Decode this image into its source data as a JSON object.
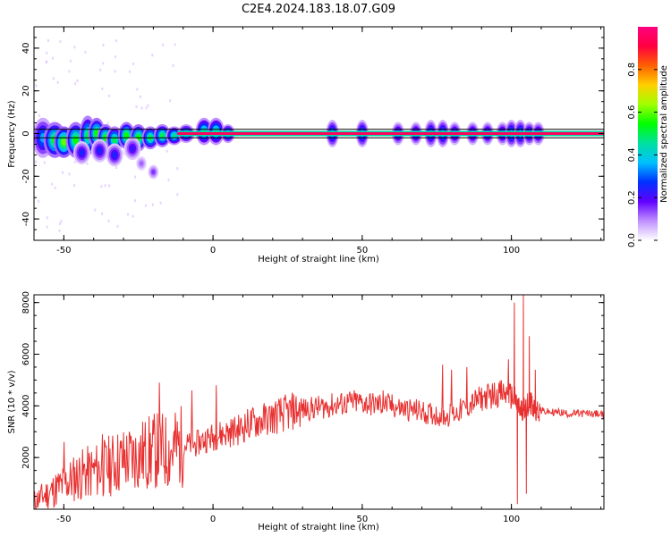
{
  "title": "C2E4.2024.183.18.07.G09",
  "chart_data": [
    {
      "type": "heatmap",
      "xlabel": "Height of straight line (km)",
      "ylabel": "Frequency (Hz)",
      "xlim": [
        -60,
        131
      ],
      "ylim": [
        -50,
        50
      ],
      "xticks": [
        -50,
        0,
        50,
        100
      ],
      "yticks": [
        -40,
        -20,
        0,
        20,
        40
      ],
      "colorbar": {
        "label": "Normalized spectral amplitude",
        "range": [
          0.0,
          1.0
        ],
        "ticks": [
          0.0,
          0.2,
          0.4,
          0.6,
          0.8
        ],
        "colors": [
          "#ffffff",
          "#c090ff",
          "#6000ff",
          "#0030ff",
          "#00c0ff",
          "#00e0a0",
          "#00ff00",
          "#a0ff00",
          "#ffd000",
          "#ff6000",
          "#ff0040",
          "#ff0080"
        ]
      },
      "reference_lines_hz": [
        -2,
        2
      ],
      "blobs": [
        {
          "x": -57,
          "f": -2,
          "w": 3.2,
          "h": 9,
          "a": 0.35
        },
        {
          "x": -53,
          "f": -3,
          "w": 3.5,
          "h": 8,
          "a": 0.55
        },
        {
          "x": -50,
          "f": -4,
          "w": 3,
          "h": 7,
          "a": 0.6
        },
        {
          "x": -46,
          "f": -3,
          "w": 3,
          "h": 8,
          "a": 0.55
        },
        {
          "x": -42,
          "f": -1,
          "w": 2.5,
          "h": 9,
          "a": 0.5
        },
        {
          "x": -39,
          "f": 0,
          "w": 2.5,
          "h": 7,
          "a": 0.55
        },
        {
          "x": -36,
          "f": -2,
          "w": 2.5,
          "h": 6,
          "a": 0.55
        },
        {
          "x": -33,
          "f": -3,
          "w": 2.5,
          "h": 6,
          "a": 0.5
        },
        {
          "x": -29,
          "f": -1,
          "w": 2.5,
          "h": 6,
          "a": 0.55
        },
        {
          "x": -25,
          "f": -2,
          "w": 2.5,
          "h": 6,
          "a": 0.55
        },
        {
          "x": -21,
          "f": -2,
          "w": 2.5,
          "h": 5,
          "a": 0.5
        },
        {
          "x": -17,
          "f": -1,
          "w": 2.5,
          "h": 5,
          "a": 0.5
        },
        {
          "x": -13,
          "f": -1,
          "w": 2.5,
          "h": 4,
          "a": 0.45
        },
        {
          "x": -9,
          "f": 0,
          "w": 2.5,
          "h": 4,
          "a": 0.4
        },
        {
          "x": -3,
          "f": 1,
          "w": 2.5,
          "h": 6,
          "a": 0.45
        },
        {
          "x": 1,
          "f": 1,
          "w": 2.5,
          "h": 6,
          "a": 0.45
        },
        {
          "x": 5,
          "f": 0,
          "w": 2,
          "h": 4,
          "a": 0.4
        },
        {
          "x": -44,
          "f": -9,
          "w": 2.5,
          "h": 5,
          "a": 0.25
        },
        {
          "x": -38,
          "f": -8,
          "w": 2.5,
          "h": 5,
          "a": 0.25
        },
        {
          "x": -33,
          "f": -10,
          "w": 2.5,
          "h": 5,
          "a": 0.25
        },
        {
          "x": -27,
          "f": -7,
          "w": 2.5,
          "h": 5,
          "a": 0.22
        },
        {
          "x": -20,
          "f": -18,
          "w": 1.5,
          "h": 3,
          "a": 0.15
        },
        {
          "x": -24,
          "f": -14,
          "w": 1.5,
          "h": 3,
          "a": 0.12
        },
        {
          "x": 40,
          "f": 0,
          "w": 1.8,
          "h": 6,
          "a": 0.35
        },
        {
          "x": 50,
          "f": 0,
          "w": 1.8,
          "h": 6,
          "a": 0.35
        },
        {
          "x": 62,
          "f": 0,
          "w": 1.8,
          "h": 5,
          "a": 0.3
        },
        {
          "x": 68,
          "f": 0,
          "w": 1.8,
          "h": 5,
          "a": 0.3
        },
        {
          "x": 73,
          "f": 0,
          "w": 1.8,
          "h": 6,
          "a": 0.33
        },
        {
          "x": 77,
          "f": 0,
          "w": 1.8,
          "h": 6,
          "a": 0.35
        },
        {
          "x": 81,
          "f": 0,
          "w": 1.8,
          "h": 5,
          "a": 0.3
        },
        {
          "x": 87,
          "f": 0,
          "w": 1.8,
          "h": 5,
          "a": 0.3
        },
        {
          "x": 92,
          "f": 0,
          "w": 1.8,
          "h": 5,
          "a": 0.3
        },
        {
          "x": 97,
          "f": 0,
          "w": 1.8,
          "h": 5,
          "a": 0.3
        },
        {
          "x": 100,
          "f": 0,
          "w": 1.8,
          "h": 6,
          "a": 0.35
        },
        {
          "x": 103,
          "f": 0,
          "w": 1.8,
          "h": 6,
          "a": 0.35
        },
        {
          "x": 106,
          "f": 0,
          "w": 1.8,
          "h": 5,
          "a": 0.33
        },
        {
          "x": 109,
          "f": 0,
          "w": 1.8,
          "h": 5,
          "a": 0.3
        }
      ],
      "line_band": {
        "x_start": -12,
        "x_end": 131,
        "f": 0,
        "value": 0.95
      }
    },
    {
      "type": "line",
      "xlabel": "Height of straight line (km)",
      "ylabel": "SNR (10 * v/v)",
      "xlim": [
        -60,
        131
      ],
      "ylim": [
        0,
        8300
      ],
      "xticks": [
        -50,
        0,
        50,
        100
      ],
      "yticks": [
        2000,
        4000,
        6000,
        8000
      ],
      "series": [
        {
          "color": "#e83030",
          "x": [
            -60,
            -57,
            -54,
            -51,
            -48,
            -45,
            -42,
            -39,
            -36,
            -33,
            -30,
            -27,
            -24,
            -21,
            -18,
            -15,
            -12,
            -9,
            -6,
            -3,
            0,
            3,
            6,
            9,
            12,
            15,
            18,
            21,
            24,
            27,
            30,
            33,
            36,
            39,
            42,
            45,
            48,
            51,
            54,
            57,
            60,
            63,
            66,
            69,
            72,
            75,
            78,
            81,
            84,
            87,
            90,
            93,
            96,
            99,
            101,
            102,
            103,
            104,
            105,
            106,
            107,
            108,
            110,
            113,
            116,
            119,
            122,
            125,
            128,
            131
          ],
          "y": [
            300,
            500,
            700,
            900,
            1100,
            1300,
            1400,
            1500,
            1600,
            1800,
            1900,
            2000,
            2100,
            2200,
            2300,
            2200,
            2400,
            2500,
            2500,
            2700,
            2800,
            2900,
            3000,
            3100,
            3300,
            3400,
            3500,
            3600,
            3700,
            3800,
            3850,
            3900,
            3950,
            4000,
            4050,
            4100,
            4150,
            4100,
            4050,
            4050,
            4000,
            3900,
            3850,
            3800,
            3700,
            3650,
            3600,
            3700,
            3900,
            4100,
            4300,
            4400,
            4500,
            4400,
            4300,
            4000,
            3800,
            3900,
            4000,
            4100,
            4000,
            3900,
            3800,
            3750,
            3750,
            3700,
            3700,
            3700,
            3700,
            3650
          ]
        }
      ],
      "spikes": [
        {
          "x": -18,
          "y": 4900
        },
        {
          "x": -7,
          "y": 4600
        },
        {
          "x": 1,
          "y": 4800
        },
        {
          "x": -50,
          "y": 2600
        },
        {
          "x": -37,
          "y": 2900
        },
        {
          "x": 57,
          "y": 4600
        },
        {
          "x": 77,
          "y": 5600
        },
        {
          "x": 80,
          "y": 5400
        },
        {
          "x": 85,
          "y": 5500
        },
        {
          "x": 99,
          "y": 5800
        },
        {
          "x": 101,
          "y": 8000
        },
        {
          "x": 102,
          "y": 200
        },
        {
          "x": 104,
          "y": 8300
        },
        {
          "x": 105,
          "y": 600
        },
        {
          "x": 106,
          "y": 6700
        },
        {
          "x": 108,
          "y": 5400
        }
      ]
    }
  ]
}
